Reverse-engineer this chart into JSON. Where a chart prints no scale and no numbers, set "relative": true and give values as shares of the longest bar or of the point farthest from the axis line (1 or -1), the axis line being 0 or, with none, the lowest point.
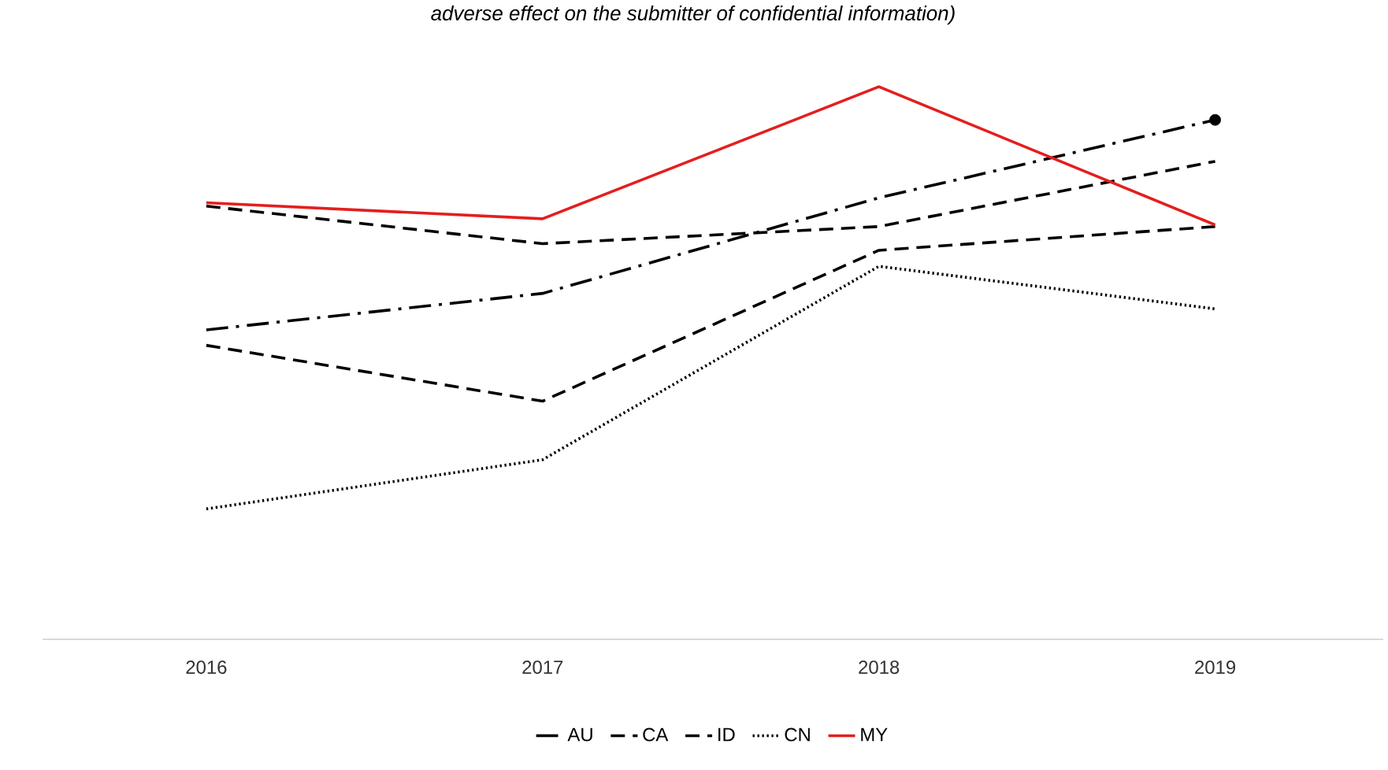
{
  "chart_data": {
    "type": "line",
    "title": "*adverse effect on the submitter of confidential information)*",
    "categories": [
      "2016",
      "2017",
      "2018",
      "2019"
    ],
    "relative": true,
    "legend": "bottom",
    "series": [
      {
        "name": "AU",
        "color": "#000000",
        "line_style": "dashdot",
        "values": [
          0.56,
          0.626,
          0.799,
          0.94
        ]
      },
      {
        "type": "scatter",
        "color": "#000000",
        "marker": "circle",
        "values": [
          null,
          null,
          null,
          0.94
        ]
      },
      {
        "name": "CA",
        "color": "#000000",
        "line_style": "dashed",
        "values": [
          0.784,
          0.716,
          0.747,
          0.865
        ]
      },
      {
        "name": "ID",
        "color": "#000000",
        "line_style": "dashed",
        "values": [
          0.532,
          0.431,
          0.704,
          0.747
        ]
      },
      {
        "name": "CN",
        "color": "#000000",
        "line_style": "dotted",
        "values": [
          0.236,
          0.325,
          0.675,
          0.598
        ]
      },
      {
        "name": "MY",
        "color": "#e41e1e",
        "line_style": "solid",
        "values": [
          0.79,
          0.761,
          1,
          0.75
        ]
      }
    ]
  }
}
